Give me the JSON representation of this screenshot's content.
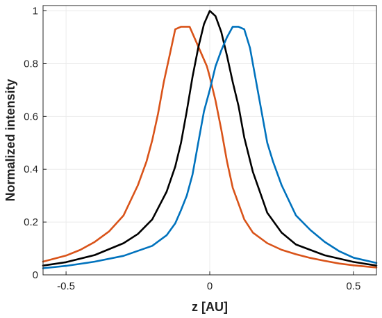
{
  "chart_data": {
    "type": "line",
    "title": "",
    "xlabel": "z [AU]",
    "ylabel": "Normalized intensity",
    "xlim": [
      -0.58,
      0.58
    ],
    "ylim": [
      0,
      1.02
    ],
    "xticks": [
      -0.5,
      0,
      0.5
    ],
    "xtick_labels": [
      "-0.5",
      "0",
      "0.5"
    ],
    "yticks": [
      0,
      0.2,
      0.4,
      0.6,
      0.8,
      1
    ],
    "ytick_labels": [
      "0",
      "0.2",
      "0.4",
      "0.6",
      "0.8",
      "1"
    ],
    "grid": true,
    "legend": "none",
    "series": [
      {
        "color": "#d95319",
        "x": [
          -0.58,
          -0.5,
          -0.45,
          -0.4,
          -0.35,
          -0.3,
          -0.25,
          -0.22,
          -0.2,
          -0.18,
          -0.16,
          -0.14,
          -0.12,
          -0.1,
          -0.07,
          -0.05,
          -0.03,
          -0.01,
          0.0,
          0.02,
          0.04,
          0.06,
          0.08,
          0.1,
          0.12,
          0.15,
          0.2,
          0.25,
          0.3,
          0.35,
          0.4,
          0.45,
          0.5,
          0.58
        ],
        "y": [
          0.05,
          0.073,
          0.095,
          0.125,
          0.165,
          0.225,
          0.34,
          0.43,
          0.51,
          0.61,
          0.73,
          0.83,
          0.93,
          0.94,
          0.94,
          0.89,
          0.84,
          0.79,
          0.75,
          0.66,
          0.55,
          0.43,
          0.33,
          0.27,
          0.21,
          0.16,
          0.12,
          0.095,
          0.078,
          0.064,
          0.053,
          0.043,
          0.036,
          0.028
        ]
      },
      {
        "color": "#000000",
        "x": [
          -0.58,
          -0.5,
          -0.4,
          -0.3,
          -0.25,
          -0.2,
          -0.15,
          -0.12,
          -0.1,
          -0.08,
          -0.06,
          -0.04,
          -0.02,
          0.0,
          0.02,
          0.04,
          0.06,
          0.08,
          0.1,
          0.12,
          0.15,
          0.2,
          0.25,
          0.3,
          0.4,
          0.5,
          0.58
        ],
        "y": [
          0.035,
          0.048,
          0.075,
          0.12,
          0.155,
          0.21,
          0.315,
          0.41,
          0.5,
          0.62,
          0.75,
          0.86,
          0.95,
          1.0,
          0.98,
          0.92,
          0.83,
          0.73,
          0.64,
          0.52,
          0.39,
          0.235,
          0.16,
          0.115,
          0.074,
          0.049,
          0.035
        ]
      },
      {
        "color": "#0072bd",
        "x": [
          -0.58,
          -0.5,
          -0.4,
          -0.3,
          -0.2,
          -0.15,
          -0.12,
          -0.1,
          -0.08,
          -0.06,
          -0.04,
          -0.02,
          0.0,
          0.02,
          0.04,
          0.06,
          0.08,
          0.1,
          0.12,
          0.14,
          0.16,
          0.18,
          0.2,
          0.22,
          0.25,
          0.3,
          0.35,
          0.4,
          0.45,
          0.5,
          0.58
        ],
        "y": [
          0.025,
          0.034,
          0.05,
          0.072,
          0.11,
          0.15,
          0.195,
          0.245,
          0.3,
          0.38,
          0.5,
          0.62,
          0.7,
          0.79,
          0.85,
          0.9,
          0.94,
          0.94,
          0.93,
          0.86,
          0.74,
          0.62,
          0.5,
          0.43,
          0.34,
          0.225,
          0.17,
          0.125,
          0.09,
          0.065,
          0.045
        ]
      }
    ]
  }
}
